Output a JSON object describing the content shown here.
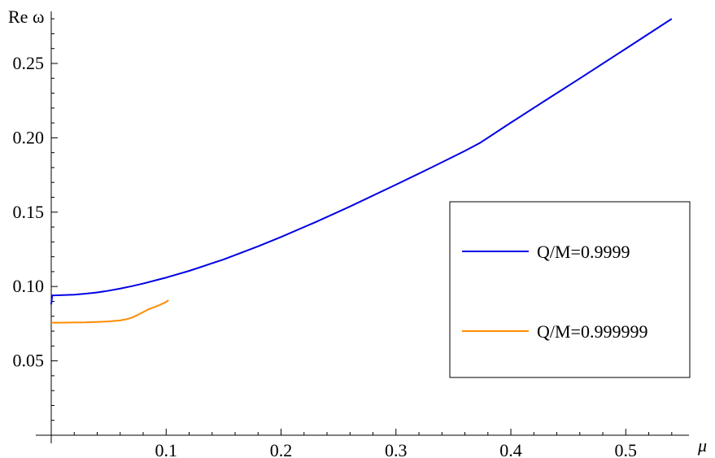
{
  "chart_data": {
    "type": "line",
    "xlabel": "μ",
    "ylabel": "Re ω",
    "xlim": [
      0,
      0.555
    ],
    "ylim": [
      0,
      0.285
    ],
    "x_ticks": [
      0.1,
      0.2,
      0.3,
      0.4,
      0.5
    ],
    "x_tick_labels": [
      "0.1",
      "0.2",
      "0.3",
      "0.4",
      "0.5"
    ],
    "y_ticks": [
      0.05,
      0.1,
      0.15,
      0.2,
      0.25
    ],
    "y_tick_labels": [
      "0.05",
      "0.10",
      "0.15",
      "0.20",
      "0.25"
    ],
    "grid": false,
    "legend_position": "right",
    "series": [
      {
        "name": "Q/M=0.9999",
        "color": "#0000e6",
        "x": [
          0.0,
          0.0008,
          0.002,
          0.01,
          0.02,
          0.03,
          0.04,
          0.05,
          0.06,
          0.07,
          0.08,
          0.09,
          0.1,
          0.12,
          0.15,
          0.18,
          0.2,
          0.23,
          0.26,
          0.3,
          0.33,
          0.36,
          0.373,
          0.4,
          0.43,
          0.46,
          0.5,
          0.54
        ],
        "y": [
          0.088,
          0.094,
          0.094,
          0.0942,
          0.0945,
          0.0952,
          0.096,
          0.0972,
          0.0986,
          0.1002,
          0.102,
          0.104,
          0.106,
          0.1105,
          0.1182,
          0.127,
          0.1333,
          0.1433,
          0.1538,
          0.1685,
          0.1797,
          0.1912,
          0.1965,
          0.2102,
          0.2251,
          0.2399,
          0.2599,
          0.28
        ]
      },
      {
        "name": "Q/M=0.999999",
        "color": "#ff8c00",
        "x": [
          0.0,
          0.01,
          0.02,
          0.03,
          0.04,
          0.05,
          0.06,
          0.065,
          0.07,
          0.075,
          0.08,
          0.085,
          0.09,
          0.095,
          0.1,
          0.102
        ],
        "y": [
          0.0757,
          0.0757,
          0.0758,
          0.0759,
          0.0762,
          0.0765,
          0.0772,
          0.0779,
          0.079,
          0.0808,
          0.0828,
          0.0848,
          0.0862,
          0.0878,
          0.0896,
          0.0908
        ]
      }
    ]
  }
}
